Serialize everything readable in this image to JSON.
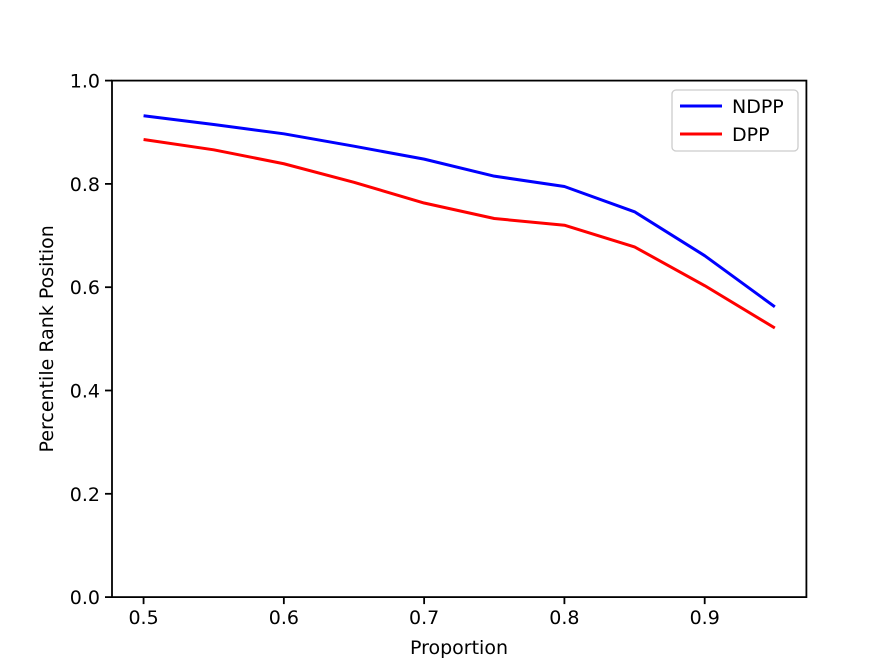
{
  "figure": {
    "background_color": "#ffffff",
    "axes_color": "#000000"
  },
  "chart_data": {
    "type": "line",
    "title": "",
    "xlabel": "Proportion",
    "ylabel": "Percentile Rank Position",
    "x": [
      0.5,
      0.55,
      0.6,
      0.65,
      0.7,
      0.75,
      0.8,
      0.85,
      0.9,
      0.95
    ],
    "series": [
      {
        "name": "NDPP",
        "color": "#0000ff",
        "values": [
          0.932,
          0.915,
          0.897,
          0.873,
          0.848,
          0.815,
          0.795,
          0.746,
          0.661,
          0.562
        ]
      },
      {
        "name": "DPP",
        "color": "#ff0000",
        "values": [
          0.886,
          0.866,
          0.839,
          0.803,
          0.763,
          0.733,
          0.72,
          0.678,
          0.603,
          0.521
        ]
      }
    ],
    "xlim": [
      0.4775,
      0.9725
    ],
    "ylim": [
      0.0,
      1.0
    ],
    "xticks": [
      0.5,
      0.6,
      0.7,
      0.8,
      0.9
    ],
    "yticks": [
      0.0,
      0.2,
      0.4,
      0.6,
      0.8,
      1.0
    ],
    "xtick_labels": [
      "0.5",
      "0.6",
      "0.7",
      "0.8",
      "0.9"
    ],
    "ytick_labels": [
      "0.0",
      "0.2",
      "0.4",
      "0.6",
      "0.8",
      "1.0"
    ],
    "grid": false,
    "legend_position": "upper right",
    "legend_border_color": "#cccccc"
  }
}
